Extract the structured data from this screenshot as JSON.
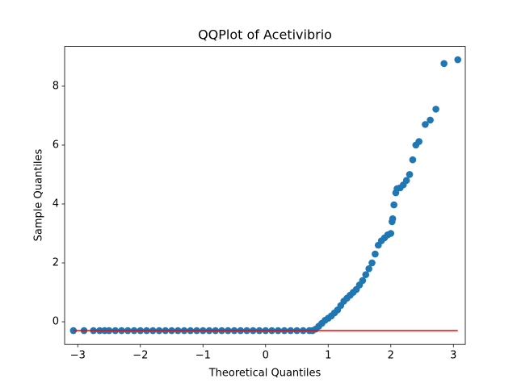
{
  "chart_data": {
    "type": "scatter",
    "title": "QQPlot of Acetivibrio",
    "xlabel": "Theoretical Quantiles",
    "ylabel": "Sample Quantiles",
    "color": "#1f77b4",
    "x": [
      -3.07,
      -2.9,
      -2.75,
      -2.65,
      -2.57,
      -2.5,
      -2.4,
      -2.3,
      -2.2,
      -2.1,
      -2.0,
      -1.9,
      -1.8,
      -1.7,
      -1.6,
      -1.5,
      -1.4,
      -1.3,
      -1.2,
      -1.1,
      -1.0,
      -0.9,
      -0.8,
      -0.7,
      -0.6,
      -0.5,
      -0.4,
      -0.3,
      -0.2,
      -0.1,
      0,
      0.1,
      0.2,
      0.3,
      0.4,
      0.5,
      0.6,
      0.7,
      0.75,
      0.8,
      0.85,
      0.9,
      0.95,
      1.0,
      1.05,
      1.1,
      1.15,
      1.2,
      1.25,
      1.3,
      1.35,
      1.4,
      1.45,
      1.5,
      1.55,
      1.6,
      1.65,
      1.7,
      1.75,
      1.8,
      1.85,
      1.9,
      1.95,
      2.0,
      2.02,
      2.03,
      2.05,
      2.08,
      2.1,
      2.15,
      2.2,
      2.25,
      2.3,
      2.35,
      2.4,
      2.45,
      2.55,
      2.63,
      2.72,
      2.85,
      3.07
    ],
    "values": [
      -0.3,
      -0.3,
      -0.3,
      -0.3,
      -0.3,
      -0.3,
      -0.3,
      -0.3,
      -0.3,
      -0.3,
      -0.3,
      -0.3,
      -0.3,
      -0.3,
      -0.3,
      -0.3,
      -0.3,
      -0.3,
      -0.3,
      -0.3,
      -0.3,
      -0.3,
      -0.3,
      -0.3,
      -0.3,
      -0.3,
      -0.3,
      -0.3,
      -0.3,
      -0.3,
      -0.3,
      -0.3,
      -0.3,
      -0.3,
      -0.3,
      -0.3,
      -0.3,
      -0.3,
      -0.3,
      -0.25,
      -0.15,
      -0.05,
      0.05,
      0.12,
      0.2,
      0.3,
      0.4,
      0.55,
      0.7,
      0.8,
      0.9,
      1.0,
      1.1,
      1.25,
      1.4,
      1.6,
      1.8,
      2.0,
      2.3,
      2.6,
      2.75,
      2.85,
      2.95,
      3.0,
      3.4,
      3.5,
      3.97,
      4.38,
      4.52,
      4.55,
      4.65,
      4.8,
      5.0,
      5.5,
      6.0,
      6.12,
      6.7,
      6.85,
      7.22,
      8.77,
      8.9
    ],
    "reference_line": {
      "x": [
        -3.07,
        3.07
      ],
      "values": [
        -0.3,
        -0.3
      ],
      "color": "#ff0000"
    },
    "xlim": [
      -3.21,
      3.19
    ],
    "ylim": [
      -0.77,
      9.35
    ],
    "xticks": [
      {
        "value": -3,
        "label": "−3"
      },
      {
        "value": -2,
        "label": "−2"
      },
      {
        "value": -1,
        "label": "−1"
      },
      0,
      1,
      2,
      3
    ],
    "yticks": [
      0,
      2,
      4,
      6,
      8
    ]
  }
}
